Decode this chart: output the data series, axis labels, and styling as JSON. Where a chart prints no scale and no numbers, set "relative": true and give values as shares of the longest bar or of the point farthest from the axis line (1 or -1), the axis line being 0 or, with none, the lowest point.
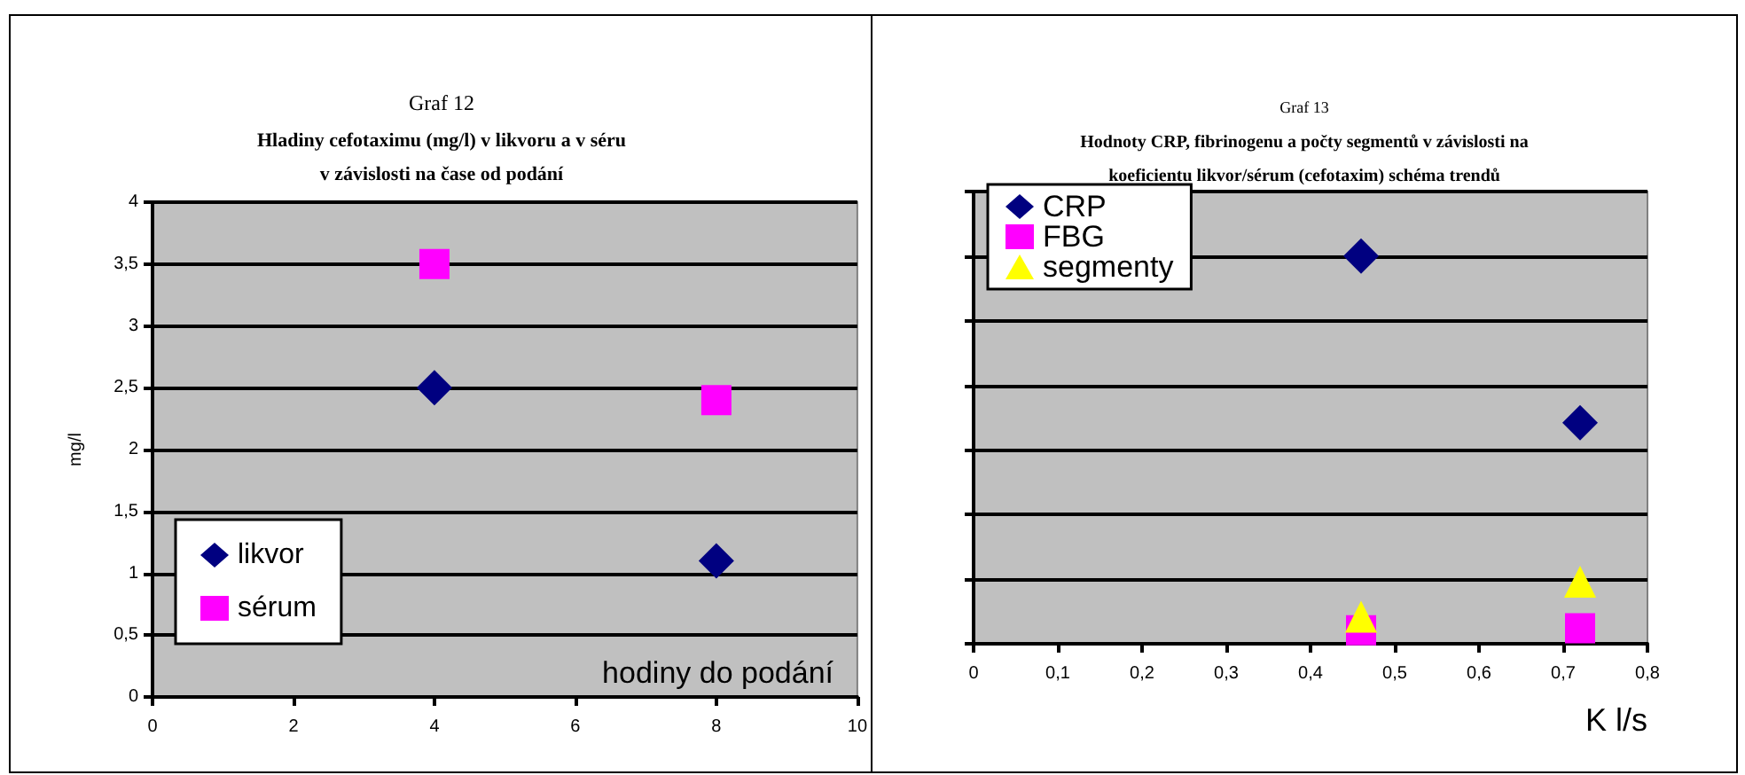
{
  "chart_data": [
    {
      "type": "scatter",
      "title": "Graf 12",
      "subtitle": "Hladiny cefotaximu (mg/l) v likvoru a v séru\nv závislosti na čase od podání",
      "ylabel": "mg/l",
      "xlabel": "hodiny do podání",
      "series": [
        {
          "name": "likvor",
          "color": "#000080",
          "marker": "diamond",
          "x": [
            4,
            8
          ],
          "values": [
            2.5,
            1.1
          ]
        },
        {
          "name": "sérum",
          "color": "#ff00ff",
          "marker": "square",
          "x": [
            4,
            8
          ],
          "values": [
            3.5,
            2.4
          ]
        }
      ],
      "xlim": [
        0,
        10
      ],
      "xticks": [
        0,
        2,
        4,
        6,
        8,
        10
      ],
      "ylim": [
        0,
        4
      ],
      "yticks": [
        0,
        {
          "value": 0.5,
          "label": "0,5"
        },
        1,
        {
          "value": 1.5,
          "label": "1,5"
        },
        2,
        {
          "value": 2.5,
          "label": "2,5"
        },
        3,
        {
          "value": 3.5,
          "label": "3,5"
        },
        4
      ],
      "grid": "y",
      "legend": "bottom left"
    },
    {
      "type": "scatter",
      "title": "Graf 13",
      "subtitle": "Hodnoty CRP, fibrinogenu a počty segmentů v závislosti na\nkoeficientu likvor/sérum (cefotaxim) schéma trendů",
      "xlabel": "K l/s",
      "relative": true,
      "series": [
        {
          "name": "CRP",
          "color": "#000080",
          "marker": "diamond",
          "x": [
            0.46,
            0.72
          ],
          "values": [
            1,
            0.57
          ]
        },
        {
          "name": "FBG",
          "color": "#ff00ff",
          "marker": "square",
          "x": [
            0.46,
            0.72
          ],
          "values": [
            0.035,
            0.04
          ]
        },
        {
          "name": "segmenty",
          "color": "#ffff00",
          "marker": "triangle",
          "x": [
            0.46,
            0.72
          ],
          "values": [
            0.07,
            0.16
          ]
        }
      ],
      "xlim": [
        0,
        0.8
      ],
      "xticks": [
        0,
        {
          "value": 0.1,
          "label": "0,1"
        },
        {
          "value": 0.2,
          "label": "0,2"
        },
        {
          "value": 0.3,
          "label": "0,3"
        },
        {
          "value": 0.4,
          "label": "0,4"
        },
        {
          "value": 0.5,
          "label": "0,5"
        },
        {
          "value": 0.6,
          "label": "0,6"
        },
        {
          "value": 0.7,
          "label": "0,7"
        },
        {
          "value": 0.8,
          "label": "0,8"
        }
      ],
      "grid": "y",
      "legend": "top left"
    }
  ]
}
